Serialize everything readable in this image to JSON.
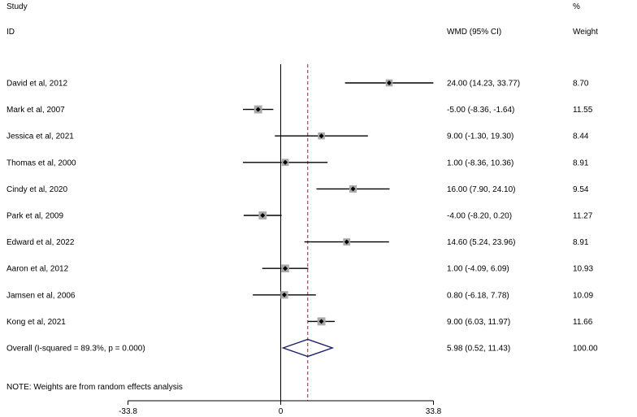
{
  "header": {
    "study_label": "Study",
    "id_label": "ID",
    "effect_label": "WMD (95% CI)",
    "percent_label": "%",
    "weight_label": "Weight"
  },
  "chart_data": {
    "type": "forest",
    "title": "",
    "xlabel": "",
    "ylabel": "",
    "x_ticks": [
      -33.8,
      0,
      33.8
    ],
    "x_tick_labels": [
      "-33.8",
      "0",
      "33.8"
    ],
    "xlim": [
      -33.8,
      33.8
    ],
    "null_line": 0,
    "pooled_reference_line": 5.98,
    "studies": [
      {
        "name": "David et al, 2012",
        "estimate": 24.0,
        "lower": 14.23,
        "upper": 33.77,
        "ci_text": "24.00 (14.23, 33.77)",
        "weight": 8.7,
        "weight_text": "8.70"
      },
      {
        "name": "Mark et al, 2007",
        "estimate": -5.0,
        "lower": -8.36,
        "upper": -1.64,
        "ci_text": "-5.00 (-8.36, -1.64)",
        "weight": 11.55,
        "weight_text": "11.55"
      },
      {
        "name": "Jessica et al, 2021",
        "estimate": 9.0,
        "lower": -1.3,
        "upper": 19.3,
        "ci_text": "9.00 (-1.30, 19.30)",
        "weight": 8.44,
        "weight_text": "8.44"
      },
      {
        "name": "Thomas et al, 2000",
        "estimate": 1.0,
        "lower": -8.36,
        "upper": 10.36,
        "ci_text": "1.00 (-8.36, 10.36)",
        "weight": 8.91,
        "weight_text": "8.91"
      },
      {
        "name": "Cindy et al, 2020",
        "estimate": 16.0,
        "lower": 7.9,
        "upper": 24.1,
        "ci_text": "16.00 (7.90, 24.10)",
        "weight": 9.54,
        "weight_text": "9.54"
      },
      {
        "name": "Park et al, 2009",
        "estimate": -4.0,
        "lower": -8.2,
        "upper": 0.2,
        "ci_text": "-4.00 (-8.20, 0.20)",
        "weight": 11.27,
        "weight_text": "11.27"
      },
      {
        "name": "Edward et al, 2022",
        "estimate": 14.6,
        "lower": 5.24,
        "upper": 23.96,
        "ci_text": "14.60 (5.24, 23.96)",
        "weight": 8.91,
        "weight_text": "8.91"
      },
      {
        "name": "Aaron et al, 2012",
        "estimate": 1.0,
        "lower": -4.09,
        "upper": 6.09,
        "ci_text": "1.00 (-4.09, 6.09)",
        "weight": 10.93,
        "weight_text": "10.93"
      },
      {
        "name": "Jamsen et al, 2006",
        "estimate": 0.8,
        "lower": -6.18,
        "upper": 7.78,
        "ci_text": "0.80 (-6.18, 7.78)",
        "weight": 10.09,
        "weight_text": "10.09"
      },
      {
        "name": "Kong et al, 2021",
        "estimate": 9.0,
        "lower": 6.03,
        "upper": 11.97,
        "ci_text": "9.00 (6.03, 11.97)",
        "weight": 11.66,
        "weight_text": "11.66"
      }
    ],
    "overall": {
      "name": "Overall  (I-squared = 89.3%, p = 0.000)",
      "estimate": 5.98,
      "lower": 0.52,
      "upper": 11.43,
      "ci_text": "5.98 (0.52, 11.43)",
      "weight": 100.0,
      "weight_text": "100.00"
    },
    "note": "NOTE: Weights are from random effects analysis",
    "colors": {
      "marker_box": "#a9a9a9",
      "diamond": "#1b1f6b",
      "reference_line": "#8b2a2a",
      "axis": "#000000"
    }
  }
}
